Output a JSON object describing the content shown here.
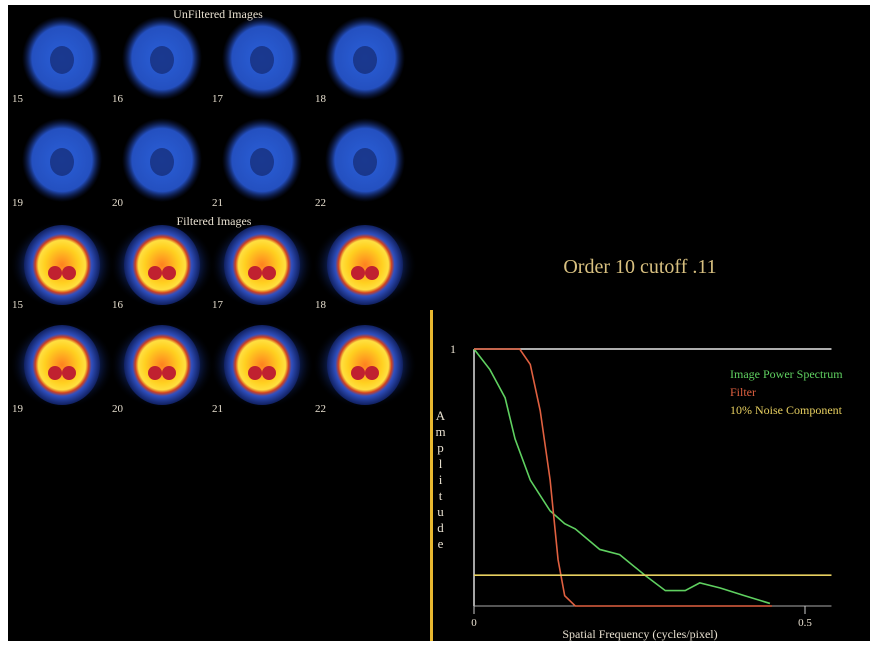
{
  "images": {
    "unfiltered_title": "UnFiltered Images",
    "filtered_title": "Filtered Images",
    "labels": [
      "15",
      "16",
      "17",
      "18",
      "19",
      "20",
      "21",
      "22"
    ]
  },
  "caption": "Order 10 cutoff .11",
  "chart_data": {
    "type": "line",
    "y_label": "Amplitude",
    "x_label": "Spatial Frequency (cycles/pixel)",
    "xlim": [
      0,
      0.54
    ],
    "ylim": [
      0,
      1
    ],
    "xticks": [
      0,
      0.5
    ],
    "yticks": [
      1
    ],
    "series": [
      {
        "name": "Image Power Spectrum",
        "color": "#5fd060",
        "x": [
          0,
          0.024,
          0.047,
          0.062,
          0.085,
          0.115,
          0.137,
          0.153,
          0.19,
          0.22,
          0.258,
          0.289,
          0.319,
          0.341,
          0.372,
          0.409,
          0.447
        ],
        "values": [
          1,
          0.92,
          0.81,
          0.65,
          0.49,
          0.37,
          0.32,
          0.3,
          0.22,
          0.2,
          0.12,
          0.06,
          0.06,
          0.09,
          0.07,
          0.04,
          0.01
        ]
      },
      {
        "name": "Filter",
        "color": "#e06040",
        "x": [
          0,
          0.069,
          0.085,
          0.1,
          0.115,
          0.127,
          0.137,
          0.153,
          0.45
        ],
        "values": [
          1,
          1,
          0.94,
          0.76,
          0.49,
          0.18,
          0.04,
          0,
          0
        ]
      },
      {
        "name": "10% Noise Component",
        "color": "#e8d060",
        "x": [
          0,
          0.54
        ],
        "values": [
          0.12,
          0.12
        ]
      }
    ]
  }
}
